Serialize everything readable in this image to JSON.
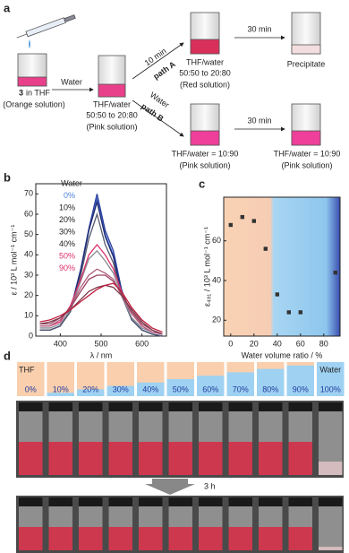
{
  "scheme": {
    "label": "a",
    "start": {
      "compound": "3",
      "text": "in THF",
      "note": "(Orange solution)"
    },
    "step1": "Water",
    "middle": {
      "line1": "THF/water",
      "line2": "50:50 to 20:80",
      "note": "(Pink solution)"
    },
    "path_a": {
      "time": "10 min",
      "name": "path A",
      "line1": "THF/water",
      "line2": "50:50 to 20:80",
      "note": "(Red solution)",
      "time2": "30 min",
      "end": "Precipitate"
    },
    "path_b": {
      "reagent": "Water",
      "name": "path B",
      "line1": "THF/water = 10:90",
      "note": "(Pink solution)",
      "time2": "30 min",
      "end_line1": "THF/water = 10:90",
      "end_note": "(Pink solution)"
    }
  },
  "chart_data": [
    {
      "type": "line",
      "panel_label": "b",
      "legend_title": "Water",
      "x_label": "λ / nm",
      "y_label": "ε / 10³ L mol⁻¹ cm⁻¹",
      "x": [
        350,
        375,
        400,
        425,
        450,
        470,
        490,
        510,
        530,
        550,
        575,
        600,
        625,
        650
      ],
      "series": [
        {
          "name": "0%",
          "color": "#4a6fd0",
          "label_color": "#4a7fd6",
          "values": [
            3,
            3,
            5,
            13,
            32,
            52,
            68,
            50,
            40,
            22,
            8,
            3,
            1,
            0
          ]
        },
        {
          "name": "10%",
          "color": "#2b3f9e",
          "label_color": "#222",
          "values": [
            3,
            3,
            5,
            13,
            33,
            53,
            70,
            52,
            42,
            23,
            8,
            3,
            1,
            0
          ]
        },
        {
          "name": "20%",
          "color": "#1f2a6e",
          "label_color": "#222",
          "values": [
            3,
            3,
            5,
            13,
            32,
            52,
            66,
            49,
            39,
            21,
            8,
            3,
            1,
            0
          ]
        },
        {
          "name": "30%",
          "color": "#555a70",
          "label_color": "#222",
          "values": [
            3,
            3,
            5,
            12,
            30,
            48,
            60,
            45,
            36,
            20,
            8,
            3,
            1,
            0
          ]
        },
        {
          "name": "40%",
          "color": "#8a8a95",
          "label_color": "#222",
          "values": [
            4,
            4,
            6,
            13,
            27,
            38,
            42,
            37,
            31,
            20,
            9,
            4,
            2,
            1
          ]
        },
        {
          "name": "50%",
          "color": "#e0306a",
          "label_color": "#e0306a",
          "values": [
            5,
            5,
            7,
            15,
            28,
            40,
            45,
            40,
            33,
            22,
            11,
            5,
            2,
            1
          ]
        },
        {
          "name": null,
          "color": "#b06080",
          "values": [
            5,
            5,
            8,
            14,
            24,
            30,
            33,
            31,
            28,
            20,
            11,
            5,
            2,
            1
          ]
        },
        {
          "name": null,
          "color": "#9a4060",
          "values": [
            6,
            6,
            9,
            14,
            22,
            28,
            30,
            30,
            27,
            21,
            12,
            6,
            3,
            1
          ]
        },
        {
          "name": null,
          "color": "#7a3a4a",
          "values": [
            6,
            7,
            9,
            13,
            18,
            22,
            24,
            25,
            24,
            20,
            13,
            7,
            3,
            1
          ]
        },
        {
          "name": "90%",
          "color": "#c02040",
          "label_color": "#e0306a",
          "values": [
            7,
            8,
            10,
            13,
            17,
            20,
            23,
            25,
            26,
            22,
            14,
            8,
            4,
            2
          ]
        }
      ],
      "xlim": [
        340,
        660
      ],
      "xticks": [
        400,
        500,
        600
      ],
      "ylim": [
        0,
        75
      ],
      "yticks": [
        0,
        10,
        20,
        30,
        40,
        50,
        60,
        70
      ]
    },
    {
      "type": "scatter",
      "panel_label": "c",
      "x_label": "Water volume ratio / %",
      "y_label": "ε₄₉₁ / 10³ L mol⁻¹ cm⁻¹",
      "color": "#333333",
      "x": [
        0,
        10,
        20,
        30,
        40,
        50,
        60,
        90
      ],
      "values": [
        68,
        72,
        70,
        56,
        33,
        24,
        24,
        44
      ],
      "xlim": [
        -6,
        94
      ],
      "xticks": [
        0,
        20,
        40,
        60,
        80
      ],
      "ylim": [
        12,
        82
      ],
      "yticks": [
        20,
        40,
        60
      ]
    }
  ],
  "photos": {
    "label": "d",
    "solvent_label": "THF",
    "water_label": "Water",
    "fractions": [
      {
        "value": 0,
        "label": "0%"
      },
      {
        "value": 10,
        "label": "10%"
      },
      {
        "value": 20,
        "label": "20%"
      },
      {
        "value": 30,
        "label": "30%"
      },
      {
        "value": 40,
        "label": "40%"
      },
      {
        "value": 50,
        "label": "50%"
      },
      {
        "value": 60,
        "label": "60%"
      },
      {
        "value": 70,
        "label": "70%"
      },
      {
        "value": 80,
        "label": "80%"
      },
      {
        "value": 90,
        "label": "90%"
      },
      {
        "value": 100,
        "label": "100%"
      }
    ],
    "time_label": "3 h"
  }
}
